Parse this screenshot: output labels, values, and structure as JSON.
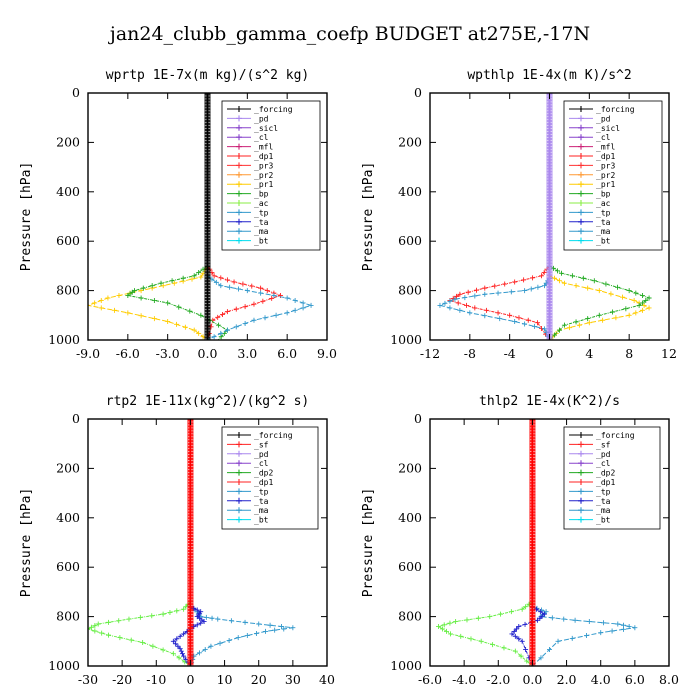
{
  "title": "jan24_clubb_gamma_coefp  BUDGET at275E,-17N",
  "ylabel": "Pressure [hPa]",
  "chart_data": [
    {
      "type": "line",
      "title": "wprtp  1E-7x(m kg)/(s^2 kg)",
      "ylabel": "Pressure [hPa]",
      "xlim": [
        -9,
        9
      ],
      "xticks": [
        "-9.0",
        "-6.0",
        "-3.0",
        "0.0",
        "3.0",
        "6.0",
        "9.0"
      ],
      "xtick_values": [
        -9,
        -6,
        -3,
        0,
        3,
        6,
        9
      ],
      "ylim": [
        1000,
        0
      ],
      "yticks": [
        "0",
        "200",
        "400",
        "600",
        "800",
        "1000"
      ],
      "ytick_values": [
        0,
        200,
        400,
        600,
        800,
        1000
      ],
      "legend": [
        "_forcing",
        "_pd",
        "_sicl",
        "_cl",
        "_mfl",
        "_dp1",
        "_pr3",
        "_pr2",
        "_pr1",
        "_bp",
        "_ac",
        "_tp",
        "_ta",
        "_ma",
        "_bt"
      ],
      "series": [
        {
          "name": "_dp1",
          "color": "#ff2222",
          "x": [
            0,
            0,
            0.5,
            2,
            4,
            5.5,
            3.5,
            1.5,
            0.4,
            0
          ],
          "y": [
            0,
            700,
            740,
            765,
            790,
            820,
            855,
            885,
            920,
            1000
          ]
        },
        {
          "name": "_pr1",
          "color": "#ffcc00",
          "x": [
            0,
            0,
            -0.5,
            -2.5,
            -5,
            -7.5,
            -9,
            -6,
            -3,
            -1,
            0
          ],
          "y": [
            0,
            700,
            745,
            770,
            800,
            830,
            860,
            890,
            925,
            960,
            1000
          ]
        },
        {
          "name": "_bp",
          "color": "#22aa22",
          "x": [
            0,
            0,
            -1,
            -3.5,
            -5.5,
            -6,
            -3,
            -0.5,
            1.5,
            0.8
          ],
          "y": [
            0,
            700,
            740,
            770,
            800,
            820,
            850,
            900,
            960,
            1000
          ]
        },
        {
          "name": "_tp",
          "color": "#3399cc",
          "x": [
            0,
            0,
            1,
            3,
            6,
            7.8,
            6,
            3.5,
            1.5,
            0
          ],
          "y": [
            0,
            740,
            780,
            800,
            830,
            860,
            890,
            920,
            960,
            1000
          ]
        },
        {
          "name": "_forcing",
          "color": "#000000",
          "x": [
            0,
            0
          ],
          "y": [
            0,
            1000
          ]
        }
      ]
    },
    {
      "type": "line",
      "title": "wpthlp  1E-4x(m K)/s^2",
      "ylabel": "Pressure [hPa]",
      "xlim": [
        -12,
        12
      ],
      "xticks": [
        "-12",
        "-8",
        "-4",
        "0",
        "4",
        "8",
        "12"
      ],
      "xtick_values": [
        -12,
        -8,
        -4,
        0,
        4,
        8,
        12
      ],
      "ylim": [
        1000,
        0
      ],
      "yticks": [
        "0",
        "200",
        "400",
        "600",
        "800",
        "1000"
      ],
      "ytick_values": [
        0,
        200,
        400,
        600,
        800,
        1000
      ],
      "legend": [
        "_forcing",
        "_pd",
        "_sicl",
        "_cl",
        "_mfl",
        "_dp1",
        "_pr3",
        "_pr2",
        "_pr1",
        "_bp",
        "_ac",
        "_tp",
        "_ta",
        "_ma",
        "_bt"
      ],
      "series": [
        {
          "name": "_dp1",
          "color": "#ff2222",
          "x": [
            0,
            0,
            -0.8,
            -3.5,
            -6.5,
            -9,
            -10,
            -7.5,
            -4,
            -1.2,
            0
          ],
          "y": [
            0,
            700,
            740,
            765,
            790,
            815,
            840,
            870,
            900,
            930,
            1000
          ]
        },
        {
          "name": "_pr1",
          "color": "#ffcc00",
          "x": [
            0,
            0,
            1.5,
            5,
            8.5,
            10,
            8,
            4,
            1,
            0
          ],
          "y": [
            0,
            740,
            770,
            800,
            840,
            870,
            900,
            930,
            960,
            1000
          ]
        },
        {
          "name": "_bp",
          "color": "#22aa22",
          "x": [
            0,
            0,
            1.2,
            4.5,
            8,
            10,
            9,
            5,
            1.5,
            0
          ],
          "y": [
            0,
            700,
            730,
            760,
            800,
            830,
            860,
            900,
            940,
            1000
          ]
        },
        {
          "name": "_tp",
          "color": "#3399cc",
          "x": [
            0,
            0,
            -0.5,
            -2.5,
            -6.5,
            -9.5,
            -11,
            -8,
            -3.5,
            -0.5,
            0
          ],
          "y": [
            0,
            750,
            780,
            800,
            815,
            835,
            860,
            890,
            925,
            955,
            1000
          ]
        },
        {
          "name": "_sicl",
          "color": "#8844cc",
          "x": [
            0,
            0
          ],
          "y": [
            0,
            1000
          ]
        },
        {
          "name": "_forcing",
          "color": "#aa88ee",
          "x": [
            0,
            0
          ],
          "y": [
            0,
            1000
          ]
        }
      ]
    },
    {
      "type": "line",
      "title": "rtp2  1E-11x(kg^2)/(kg^2 s)",
      "ylabel": "Pressure [hPa]",
      "xlim": [
        -30,
        40
      ],
      "xticks": [
        "-30",
        "-20",
        "-10",
        "0",
        "10",
        "20",
        "30",
        "40"
      ],
      "xtick_values": [
        -30,
        -20,
        -10,
        0,
        10,
        20,
        30,
        40
      ],
      "ylim": [
        1000,
        0
      ],
      "yticks": [
        "0",
        "200",
        "400",
        "600",
        "800",
        "1000"
      ],
      "ytick_values": [
        0,
        200,
        400,
        600,
        800,
        1000
      ],
      "legend": [
        "_forcing",
        "_sf",
        "_pd",
        "_cl",
        "_dp2",
        "_dp1",
        "_tp",
        "_ta",
        "_ma",
        "_bt"
      ],
      "series": [
        {
          "name": "_dp1",
          "color": "#66ee44",
          "x": [
            0,
            0,
            -2,
            -8,
            -18,
            -27,
            -30,
            -24,
            -14,
            -5,
            0
          ],
          "y": [
            0,
            740,
            770,
            790,
            810,
            830,
            850,
            875,
            905,
            950,
            1000
          ]
        },
        {
          "name": "_tp",
          "color": "#3399cc",
          "x": [
            0,
            0,
            2,
            3,
            8,
            20,
            30,
            22,
            14,
            6,
            1,
            0
          ],
          "y": [
            0,
            760,
            780,
            800,
            810,
            830,
            845,
            860,
            885,
            920,
            960,
            1000
          ]
        },
        {
          "name": "_ta",
          "color": "#2222cc",
          "x": [
            0,
            0,
            3,
            2,
            4,
            1,
            -2,
            -5,
            -3,
            -2,
            0
          ],
          "y": [
            0,
            760,
            780,
            800,
            820,
            840,
            870,
            900,
            930,
            960,
            1000
          ]
        },
        {
          "name": "_forcing",
          "color": "#ff0000",
          "x": [
            0,
            0
          ],
          "y": [
            0,
            1000
          ]
        }
      ]
    },
    {
      "type": "line",
      "title": "thlp2  1E-4x(K^2)/s",
      "ylabel": "Pressure [hPa]",
      "xlim": [
        -6,
        8
      ],
      "xticks": [
        "-6.0",
        "-4.0",
        "-2.0",
        "0.0",
        "2.0",
        "4.0",
        "6.0",
        "8.0"
      ],
      "xtick_values": [
        -6,
        -4,
        -2,
        0,
        2,
        4,
        6,
        8
      ],
      "ylim": [
        1000,
        0
      ],
      "yticks": [
        "0",
        "200",
        "400",
        "600",
        "800",
        "1000"
      ],
      "ytick_values": [
        0,
        200,
        400,
        600,
        800,
        1000
      ],
      "legend": [
        "_forcing",
        "_sf",
        "_pd",
        "_cl",
        "_dp2",
        "_dp1",
        "_tp",
        "_ta",
        "_ma",
        "_bt"
      ],
      "series": [
        {
          "name": "_dp1",
          "color": "#66ee44",
          "x": [
            0,
            0,
            -0.6,
            -2.5,
            -4.5,
            -5.5,
            -4.8,
            -3,
            -1,
            0
          ],
          "y": [
            0,
            740,
            770,
            800,
            820,
            840,
            870,
            900,
            940,
            1000
          ]
        },
        {
          "name": "_tp",
          "color": "#3399cc",
          "x": [
            0,
            0,
            0.8,
            0.5,
            2.5,
            5,
            6,
            4,
            1.5,
            0
          ],
          "y": [
            0,
            760,
            780,
            800,
            815,
            830,
            845,
            865,
            900,
            1000
          ]
        },
        {
          "name": "_ta",
          "color": "#2222cc",
          "x": [
            0,
            0,
            0.7,
            0.3,
            -0.8,
            -1.2,
            -0.6,
            0
          ],
          "y": [
            0,
            760,
            790,
            815,
            840,
            870,
            900,
            1000
          ]
        },
        {
          "name": "_forcing",
          "color": "#ff0000",
          "x": [
            0,
            0
          ],
          "y": [
            0,
            1000
          ]
        }
      ]
    }
  ],
  "colors": {
    "_forcing": "#000000",
    "_pd": "#aa88ee",
    "_sicl": "#8844cc",
    "_cl": "#8844cc",
    "_mfl": "#cc2277",
    "_dp1": "#ff2222",
    "_pr3": "#ff3333",
    "_pr2": "#ff9933",
    "_pr1": "#ffcc00",
    "_bp": "#22aa22",
    "_ac": "#88ee44",
    "_tp": "#3399cc",
    "_ta": "#2222cc",
    "_ma": "#3399cc",
    "_bt": "#00ddee",
    "_sf": "#ff2222",
    "_dp2": "#22aa22"
  }
}
